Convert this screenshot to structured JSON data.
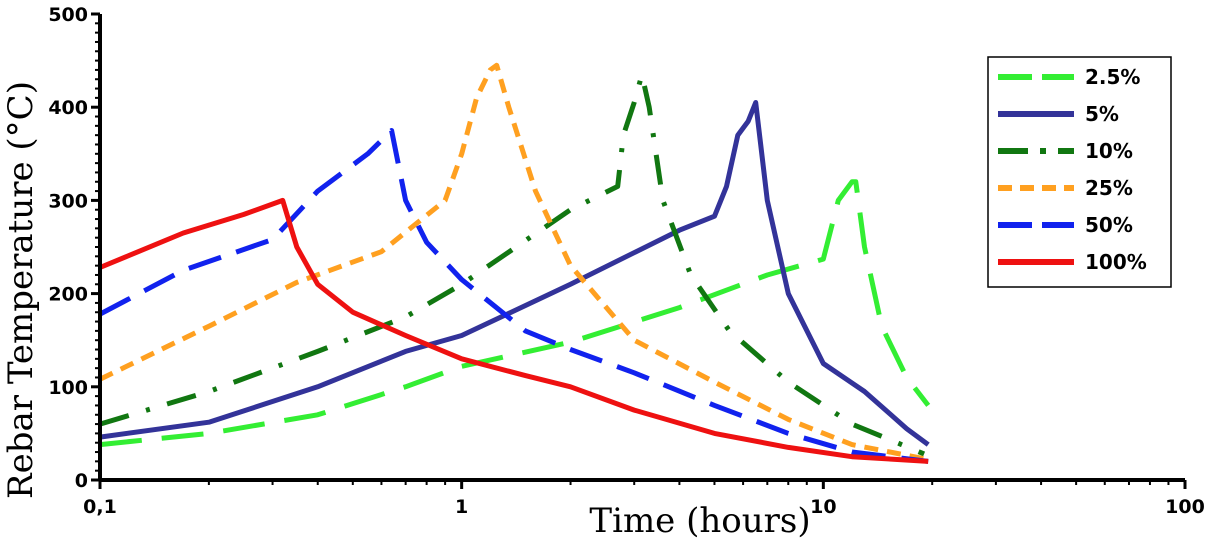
{
  "chart_data": {
    "type": "line",
    "xscale": "log",
    "xlim": [
      0.1,
      100
    ],
    "ylim": [
      0,
      500
    ],
    "xlabel": "Time (hours)",
    "ylabel": "Rebar Temperature (°C)",
    "xticks": [
      {
        "value": 0.1,
        "label": "0,1"
      },
      {
        "value": 1,
        "label": "1"
      },
      {
        "value": 10,
        "label": "10"
      },
      {
        "value": 100,
        "label": "100"
      }
    ],
    "yticks": [
      {
        "value": 0,
        "label": "0"
      },
      {
        "value": 100,
        "label": "100"
      },
      {
        "value": 200,
        "label": "200"
      },
      {
        "value": 300,
        "label": "300"
      },
      {
        "value": 400,
        "label": "400"
      },
      {
        "value": 500,
        "label": "500"
      }
    ],
    "grid": false,
    "legend_position": "top-right",
    "series": [
      {
        "name": "2.5%",
        "color": "#33ee33",
        "dash": "long-dash",
        "x": [
          0.1,
          0.2,
          0.4,
          0.7,
          1.0,
          2.0,
          4.0,
          7.0,
          10.0,
          11.0,
          12.0,
          12.3,
          13.0,
          14.5,
          17.0,
          19.5
        ],
        "y": [
          38,
          50,
          70,
          100,
          122,
          148,
          185,
          220,
          237,
          300,
          320,
          320,
          250,
          165,
          110,
          80
        ]
      },
      {
        "name": "5%",
        "color": "#333399",
        "dash": "solid",
        "x": [
          0.1,
          0.2,
          0.4,
          0.7,
          1.0,
          2.0,
          4.0,
          5.0,
          5.4,
          5.8,
          6.2,
          6.5,
          7.0,
          8.0,
          10.0,
          13.0,
          17.0,
          19.5
        ],
        "y": [
          46,
          62,
          100,
          138,
          155,
          210,
          268,
          283,
          315,
          370,
          385,
          405,
          300,
          200,
          125,
          95,
          55,
          38
        ]
      },
      {
        "name": "10%",
        "color": "#117711",
        "dash": "dash-dot",
        "x": [
          0.1,
          0.2,
          0.4,
          0.7,
          1.0,
          2.0,
          2.7,
          2.8,
          3.0,
          3.15,
          3.3,
          3.6,
          4.3,
          5.5,
          8.0,
          12.0,
          19.0
        ],
        "y": [
          60,
          95,
          138,
          175,
          210,
          290,
          315,
          370,
          405,
          435,
          400,
          300,
          220,
          160,
          105,
          60,
          28
        ]
      },
      {
        "name": "25%",
        "color": "#ffa020",
        "dash": "short-dash",
        "x": [
          0.1,
          0.2,
          0.35,
          0.6,
          0.9,
          1.0,
          1.1,
          1.2,
          1.25,
          1.35,
          1.6,
          2.0,
          3.0,
          5.0,
          8.0,
          12.0,
          19.5
        ],
        "y": [
          108,
          165,
          212,
          245,
          300,
          350,
          410,
          440,
          445,
          400,
          310,
          230,
          150,
          105,
          65,
          38,
          22
        ]
      },
      {
        "name": "50%",
        "color": "#1122ee",
        "dash": "dash",
        "x": [
          0.1,
          0.17,
          0.3,
          0.4,
          0.55,
          0.64,
          0.7,
          0.8,
          1.0,
          1.5,
          2.0,
          3.0,
          5.0,
          8.0,
          12.0,
          19.5
        ],
        "y": [
          178,
          225,
          258,
          310,
          350,
          375,
          300,
          255,
          215,
          160,
          140,
          115,
          80,
          50,
          30,
          20
        ]
      },
      {
        "name": "100%",
        "color": "#ee1111",
        "dash": "solid",
        "x": [
          0.1,
          0.17,
          0.25,
          0.32,
          0.35,
          0.4,
          0.5,
          0.7,
          1.0,
          1.5,
          2.0,
          3.0,
          5.0,
          8.0,
          12.0,
          19.5
        ],
        "y": [
          228,
          265,
          285,
          300,
          250,
          210,
          180,
          155,
          130,
          112,
          100,
          75,
          50,
          35,
          25,
          20
        ]
      }
    ]
  }
}
